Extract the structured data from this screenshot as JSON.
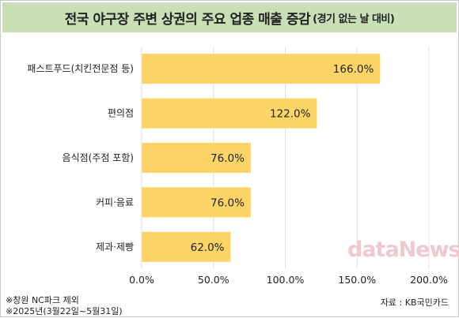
{
  "title": "전국 야구장 주변 상권의 주요 업종 매출 증감",
  "subtitle": "(경기 없는 날 대비)",
  "watermark": "dataNews",
  "footnotes": [
    "※창원 NC파크 제외",
    "※2025년(3월22일~5월31일)"
  ],
  "source": "자료 : KB국민카드",
  "colors": {
    "bar": "#fcd566",
    "title_bg": "#c9dfb6",
    "grid": "#e2e2e2"
  },
  "chart_data": {
    "type": "bar",
    "orientation": "horizontal",
    "categories": [
      "패스트푸드(치킨전문점 등)",
      "편의점",
      "음식점(주점 포함)",
      "커피·음료",
      "제과·제빵"
    ],
    "values": [
      166.0,
      122.0,
      76.0,
      76.0,
      62.0
    ],
    "value_labels": [
      "166.0%",
      "122.0%",
      "76.0%",
      "76.0%",
      "62.0%"
    ],
    "xlim": [
      0,
      200
    ],
    "xticks": [
      0,
      50,
      100,
      150,
      200
    ],
    "xtick_labels": [
      "0.0%",
      "50.0%",
      "100.0%",
      "150.0%",
      "200.0%"
    ],
    "grid": true,
    "xlabel": "",
    "ylabel": ""
  }
}
